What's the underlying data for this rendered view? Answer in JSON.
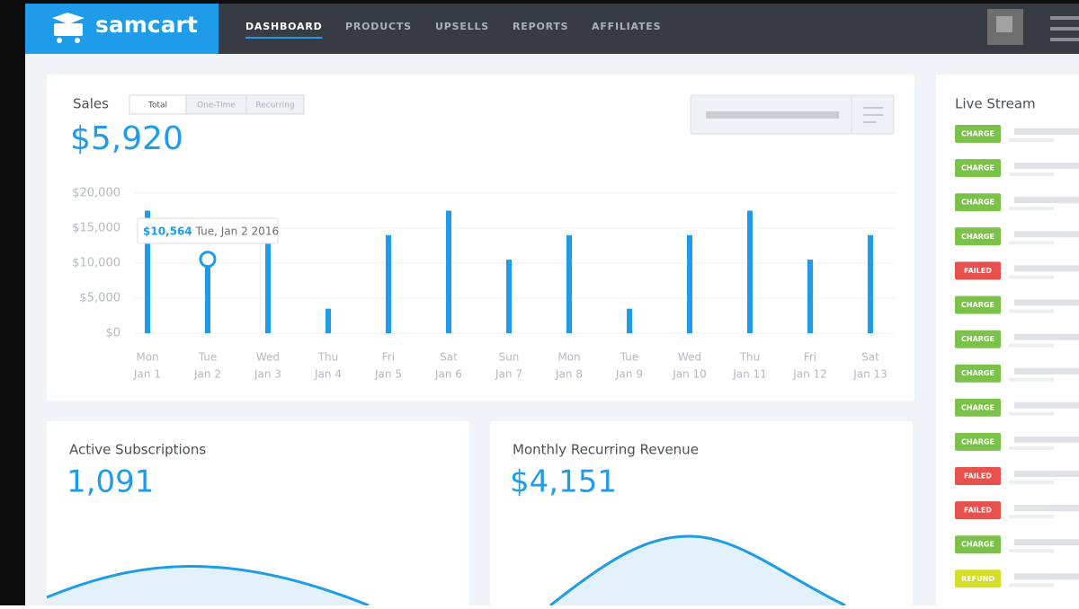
{
  "nav": {
    "brand": "samcart",
    "items": [
      "DASHBOARD",
      "PRODUCTS",
      "UPSELLS",
      "REPORTS",
      "AFFILIATES"
    ]
  },
  "sales": {
    "title": "Sales",
    "tabs": [
      "Total",
      "One-Time",
      "Recurring"
    ],
    "total": "$5,920"
  },
  "chart_data": {
    "type": "bar",
    "categories": [
      [
        "Mon",
        "Jan 1"
      ],
      [
        "Tue",
        "Jan 2"
      ],
      [
        "Wed",
        "Jan 3"
      ],
      [
        "Thu",
        "Jan 4"
      ],
      [
        "Fri",
        "Jan 5"
      ],
      [
        "Sat",
        "Jan 6"
      ],
      [
        "Sun",
        "Jan 7"
      ],
      [
        "Mon",
        "Jan 8"
      ],
      [
        "Tue",
        "Jan 9"
      ],
      [
        "Wed",
        "Jan 10"
      ],
      [
        "Thu",
        "Jan 11"
      ],
      [
        "Fri",
        "Jan 12"
      ],
      [
        "Sat",
        "Jan 13"
      ]
    ],
    "values": [
      17500,
      10564,
      14000,
      3500,
      14000,
      17500,
      10500,
      14000,
      3500,
      14000,
      17500,
      10500,
      14000
    ],
    "color": "#1e9be9",
    "ylim": [
      0,
      20000
    ],
    "yticks": [
      {
        "value": 0,
        "label": "$0"
      },
      {
        "value": 5000,
        "label": "$5,000"
      },
      {
        "value": 10000,
        "label": "$10,000"
      },
      {
        "value": 15000,
        "label": "$15,000"
      },
      {
        "value": 20000,
        "label": "$20,000"
      }
    ],
    "grid": true,
    "tooltip": {
      "label": "$10,564",
      "date": "Tue, Jan 2 2016"
    }
  },
  "subscriptions": {
    "title": "Active Subscriptions",
    "value": "1,091"
  },
  "mrr": {
    "title": "Monthly Recurring Revenue",
    "value": "$4,151"
  },
  "live_stream": {
    "title": "Live Stream",
    "events": [
      "CHARGE",
      "CHARGE",
      "CHARGE",
      "CHARGE",
      "FAILED",
      "CHARGE",
      "CHARGE",
      "CHARGE",
      "CHARGE",
      "CHARGE",
      "FAILED",
      "FAILED",
      "CHARGE",
      "REFUND"
    ],
    "badge_colors": {
      "CHARGE": "#7cc14a",
      "FAILED": "#e8504d",
      "REFUND": "#d5dd28"
    }
  }
}
